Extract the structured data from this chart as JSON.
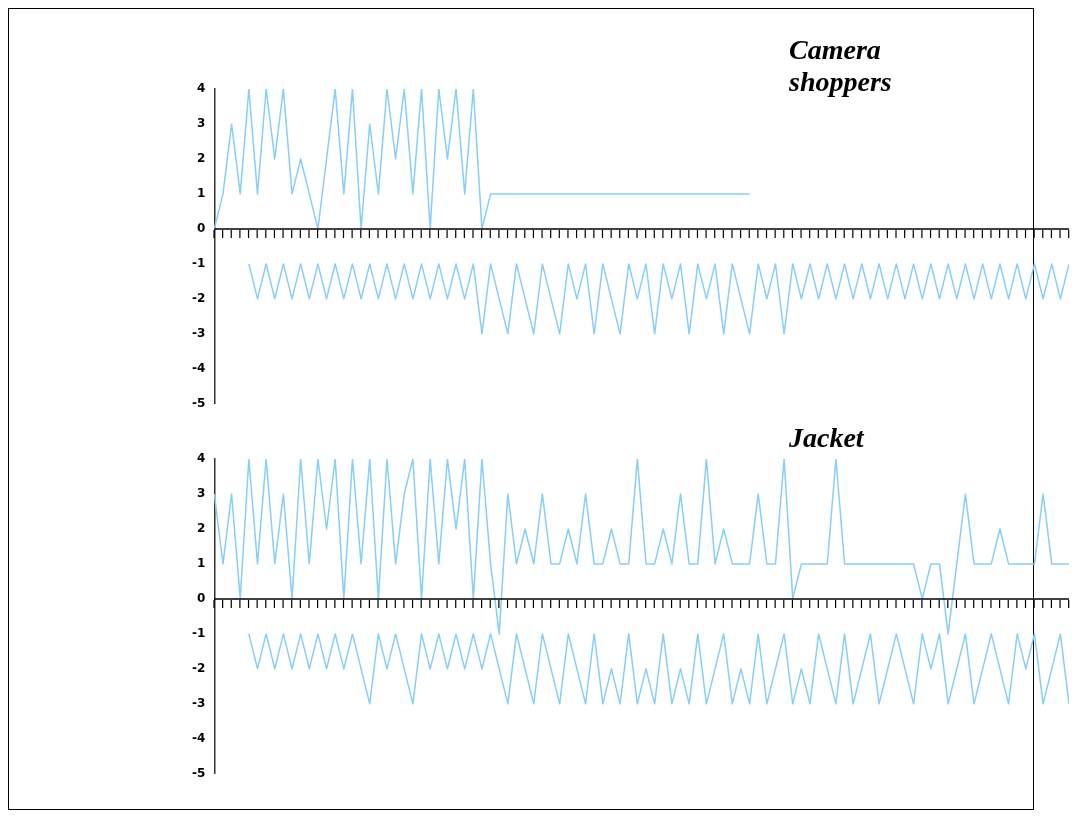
{
  "chart_data": [
    {
      "type": "line",
      "title": "Camera shoppers",
      "categories": [
        null,
        null,
        null,
        null,
        null,
        null,
        null,
        null,
        null,
        null,
        null,
        null,
        null,
        null,
        null,
        null,
        null,
        null,
        null,
        null,
        null,
        null,
        null,
        null,
        null,
        null,
        null,
        null,
        null,
        null,
        null,
        null,
        null,
        null,
        null,
        null,
        null,
        null,
        null,
        null,
        null,
        null,
        null,
        null,
        null,
        null,
        null,
        null,
        null,
        null,
        null,
        null,
        null,
        null,
        null,
        null,
        null,
        null,
        null,
        null,
        null,
        null,
        null,
        null,
        null,
        null,
        null,
        null,
        null,
        null,
        null,
        null,
        null,
        null,
        null,
        null,
        null,
        null,
        null,
        null,
        null,
        null,
        null,
        null,
        null,
        null,
        null,
        null,
        null,
        null,
        null,
        null,
        null,
        null,
        null,
        null,
        null,
        null,
        null,
        null
      ],
      "series": [
        {
          "color": "#87cefa",
          "values": [
            0,
            1,
            3,
            1,
            4,
            1,
            4,
            2,
            4,
            1,
            2,
            1,
            0,
            2,
            4,
            1,
            4,
            0,
            3,
            1,
            4,
            2,
            4,
            1,
            4,
            0,
            4,
            2,
            4,
            1,
            4,
            0,
            1,
            1,
            1,
            1,
            1,
            1,
            1,
            1,
            1,
            1,
            1,
            1,
            1,
            1,
            1,
            1,
            1,
            1,
            1,
            1,
            1,
            1,
            1,
            1,
            1,
            1,
            1,
            1,
            1,
            1,
            1,
            null,
            null,
            null,
            null,
            null,
            null,
            null,
            null,
            null,
            null,
            null,
            null,
            null,
            null,
            null,
            null,
            null,
            null,
            null,
            null,
            null,
            null,
            null,
            null,
            null,
            null,
            null,
            null,
            null,
            null,
            null,
            null,
            null,
            null,
            null,
            null,
            null
          ]
        },
        {
          "color": "#87cefa",
          "values": [
            null,
            null,
            null,
            null,
            -1,
            -2,
            -1,
            -2,
            -1,
            -2,
            -1,
            -2,
            -1,
            -2,
            -1,
            -2,
            -1,
            -2,
            -1,
            -2,
            -1,
            -2,
            -1,
            -2,
            -1,
            -2,
            -1,
            -2,
            -1,
            -2,
            -1,
            -3,
            -1,
            -2,
            -3,
            -1,
            -2,
            -3,
            -1,
            -2,
            -3,
            -1,
            -2,
            -1,
            -3,
            -1,
            -2,
            -3,
            -1,
            -2,
            -1,
            -3,
            -1,
            -2,
            -1,
            -3,
            -1,
            -2,
            -1,
            -3,
            -1,
            -2,
            -3,
            -1,
            -2,
            -1,
            -3,
            -1,
            -2,
            -1,
            -2,
            -1,
            -2,
            -1,
            -2,
            -1,
            -2,
            -1,
            -2,
            -1,
            -2,
            -1,
            -2,
            -1,
            -2,
            -1,
            -2,
            -1,
            -2,
            -1,
            -2,
            -1,
            -2,
            -1,
            -2,
            -1,
            -2,
            -1,
            -2,
            -1
          ]
        }
      ],
      "ylim": [
        -5,
        4
      ],
      "yticks": [
        -5,
        -4,
        -3,
        -2,
        -1,
        0,
        1,
        2,
        3,
        4
      ],
      "grid": false,
      "legend": false,
      "tick_labels": "y",
      "marker": "none",
      "ref_lines": [
        {
          "axis": "y",
          "value": 0,
          "color": "#000000"
        }
      ]
    },
    {
      "type": "line",
      "title": "Jacket",
      "categories": [
        null,
        null,
        null,
        null,
        null,
        null,
        null,
        null,
        null,
        null,
        null,
        null,
        null,
        null,
        null,
        null,
        null,
        null,
        null,
        null,
        null,
        null,
        null,
        null,
        null,
        null,
        null,
        null,
        null,
        null,
        null,
        null,
        null,
        null,
        null,
        null,
        null,
        null,
        null,
        null,
        null,
        null,
        null,
        null,
        null,
        null,
        null,
        null,
        null,
        null,
        null,
        null,
        null,
        null,
        null,
        null,
        null,
        null,
        null,
        null,
        null,
        null,
        null,
        null,
        null,
        null,
        null,
        null,
        null,
        null,
        null,
        null,
        null,
        null,
        null,
        null,
        null,
        null,
        null,
        null,
        null,
        null,
        null,
        null,
        null,
        null,
        null,
        null,
        null,
        null,
        null,
        null,
        null,
        null,
        null,
        null,
        null,
        null,
        null,
        null
      ],
      "series": [
        {
          "color": "#87cefa",
          "values": [
            3,
            1,
            3,
            0,
            4,
            1,
            4,
            1,
            3,
            0,
            4,
            1,
            4,
            2,
            4,
            0,
            4,
            1,
            4,
            0,
            4,
            1,
            3,
            4,
            0,
            4,
            1,
            4,
            2,
            4,
            0,
            4,
            1,
            -1,
            3,
            1,
            2,
            1,
            3,
            1,
            1,
            2,
            1,
            3,
            1,
            1,
            2,
            1,
            1,
            4,
            1,
            1,
            2,
            1,
            3,
            1,
            1,
            4,
            1,
            2,
            1,
            1,
            1,
            3,
            1,
            1,
            4,
            0,
            1,
            1,
            1,
            1,
            4,
            1,
            1,
            1,
            1,
            1,
            1,
            1,
            1,
            1,
            0,
            1,
            1,
            -1,
            1,
            3,
            1,
            1,
            1,
            2,
            1,
            1,
            1,
            1,
            3,
            1,
            1,
            1
          ]
        },
        {
          "color": "#87cefa",
          "values": [
            null,
            null,
            null,
            null,
            -1,
            -2,
            -1,
            -2,
            -1,
            -2,
            -1,
            -2,
            -1,
            -2,
            -1,
            -2,
            -1,
            -2,
            -3,
            -1,
            -2,
            -1,
            -2,
            -3,
            -1,
            -2,
            -1,
            -2,
            -1,
            -2,
            -1,
            -2,
            -1,
            -2,
            -3,
            -1,
            -2,
            -3,
            -1,
            -2,
            -3,
            -1,
            -2,
            -3,
            -1,
            -3,
            -2,
            -3,
            -1,
            -3,
            -2,
            -3,
            -1,
            -3,
            -2,
            -3,
            -1,
            -3,
            -2,
            -1,
            -3,
            -2,
            -3,
            -1,
            -3,
            -2,
            -1,
            -3,
            -2,
            -3,
            -1,
            -2,
            -3,
            -1,
            -3,
            -2,
            -1,
            -3,
            -2,
            -1,
            -2,
            -3,
            -1,
            -2,
            -1,
            -3,
            -2,
            -1,
            -3,
            -2,
            -1,
            -2,
            -3,
            -1,
            -2,
            -1,
            -3,
            -2,
            -1,
            -3
          ]
        }
      ],
      "ylim": [
        -5,
        4
      ],
      "yticks": [
        -5,
        -4,
        -3,
        -2,
        -1,
        0,
        1,
        2,
        3,
        4
      ],
      "grid": false,
      "legend": false,
      "tick_labels": "y",
      "marker": "none",
      "ref_lines": [
        {
          "axis": "y",
          "value": 0,
          "color": "#000000"
        }
      ]
    }
  ]
}
